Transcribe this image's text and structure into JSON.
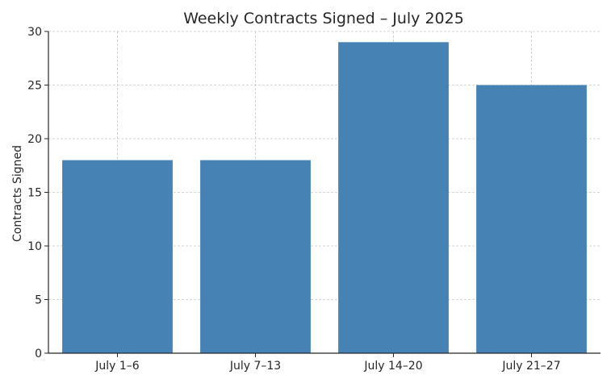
{
  "chart_data": {
    "type": "bar",
    "title": "Weekly Contracts Signed – July 2025",
    "xlabel": "",
    "ylabel": "Contracts Signed",
    "categories": [
      "July 1–6",
      "July 7–13",
      "July 14–20",
      "July 21–27"
    ],
    "values": [
      18,
      18,
      29,
      25
    ],
    "ylim": [
      0,
      30
    ],
    "yticks": [
      0,
      5,
      10,
      15,
      20,
      25,
      30
    ],
    "grid": true,
    "bar_color": "#4682b4"
  }
}
